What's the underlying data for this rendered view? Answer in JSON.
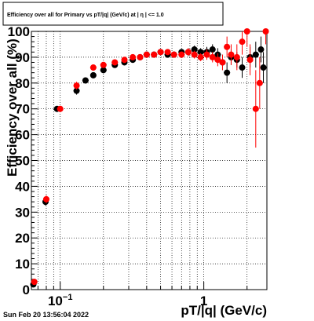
{
  "chart_data": {
    "type": "scatter",
    "title": "Efficiency over all for Primary vs pT/|q| (GeV/c) at | η | <= 1.0",
    "xlabel": "pT/|q| (GeV/c)",
    "ylabel": "Efficiency over all (%)",
    "x_scale": "log",
    "xlim": [
      0.063,
      2.75
    ],
    "ylim": [
      0,
      100
    ],
    "x_tick_labels": [
      {
        "value": 0.1,
        "base": "10",
        "exp": "−1"
      },
      {
        "value": 1,
        "base": "1",
        "exp": ""
      }
    ],
    "y_ticks": [
      0,
      10,
      20,
      30,
      40,
      50,
      60,
      70,
      80,
      90,
      100
    ],
    "grid": true,
    "footer": "Sun Feb 20 13:56:04 2022",
    "series": [
      {
        "color": "#000000",
        "points": [
          {
            "x": 0.065,
            "y": 2,
            "ey": 0.8
          },
          {
            "x": 0.079,
            "y": 34,
            "ey": 1.5
          },
          {
            "x": 0.095,
            "y": 70,
            "ey": 1
          },
          {
            "x": 0.13,
            "y": 77,
            "ey": 1.5
          },
          {
            "x": 0.15,
            "y": 81,
            "ey": 1.2
          },
          {
            "x": 0.17,
            "y": 83,
            "ey": 1.2
          },
          {
            "x": 0.2,
            "y": 85,
            "ey": 1
          },
          {
            "x": 0.24,
            "y": 87,
            "ey": 1
          },
          {
            "x": 0.28,
            "y": 88,
            "ey": 1
          },
          {
            "x": 0.32,
            "y": 89,
            "ey": 1
          },
          {
            "x": 0.36,
            "y": 90,
            "ey": 1
          },
          {
            "x": 0.4,
            "y": 91,
            "ey": 1
          },
          {
            "x": 0.45,
            "y": 91,
            "ey": 1
          },
          {
            "x": 0.5,
            "y": 92,
            "ey": 1
          },
          {
            "x": 0.56,
            "y": 91,
            "ey": 1
          },
          {
            "x": 0.62,
            "y": 91,
            "ey": 1.2
          },
          {
            "x": 0.7,
            "y": 92,
            "ey": 1.2
          },
          {
            "x": 0.78,
            "y": 92,
            "ey": 1.5
          },
          {
            "x": 0.86,
            "y": 93,
            "ey": 1.5
          },
          {
            "x": 0.95,
            "y": 92,
            "ey": 1.5
          },
          {
            "x": 1.05,
            "y": 92,
            "ey": 2
          },
          {
            "x": 1.15,
            "y": 93,
            "ey": 2
          },
          {
            "x": 1.25,
            "y": 91,
            "ey": 2.5
          },
          {
            "x": 1.35,
            "y": 88,
            "ey": 3
          },
          {
            "x": 1.45,
            "y": 84,
            "ey": 4
          },
          {
            "x": 1.55,
            "y": 90,
            "ey": 3
          },
          {
            "x": 1.7,
            "y": 89,
            "ey": 3
          },
          {
            "x": 1.85,
            "y": 86,
            "ey": 4
          },
          {
            "x": 2.1,
            "y": 90,
            "ey": 4
          },
          {
            "x": 2.3,
            "y": 91,
            "ey": 5
          },
          {
            "x": 2.5,
            "y": 93,
            "ey": 5
          },
          {
            "x": 2.6,
            "y": 86,
            "ey": 6
          }
        ]
      },
      {
        "color": "#ff0000",
        "points": [
          {
            "x": 0.066,
            "y": 3,
            "ey": 0.8
          },
          {
            "x": 0.08,
            "y": 35,
            "ey": 1.5
          },
          {
            "x": 0.1,
            "y": 70,
            "ey": 1
          },
          {
            "x": 0.13,
            "y": 79,
            "ey": 1.5
          },
          {
            "x": 0.17,
            "y": 86,
            "ey": 1.2
          },
          {
            "x": 0.2,
            "y": 87,
            "ey": 1
          },
          {
            "x": 0.24,
            "y": 88,
            "ey": 1
          },
          {
            "x": 0.28,
            "y": 89,
            "ey": 1
          },
          {
            "x": 0.32,
            "y": 90,
            "ey": 1
          },
          {
            "x": 0.36,
            "y": 90,
            "ey": 1
          },
          {
            "x": 0.4,
            "y": 91,
            "ey": 1
          },
          {
            "x": 0.45,
            "y": 91,
            "ey": 1
          },
          {
            "x": 0.5,
            "y": 92,
            "ey": 1
          },
          {
            "x": 0.56,
            "y": 92,
            "ey": 1
          },
          {
            "x": 0.62,
            "y": 91,
            "ey": 1.2
          },
          {
            "x": 0.7,
            "y": 91,
            "ey": 1.2
          },
          {
            "x": 0.78,
            "y": 92,
            "ey": 1.5
          },
          {
            "x": 0.86,
            "y": 91,
            "ey": 1.5
          },
          {
            "x": 0.95,
            "y": 90,
            "ey": 1.5
          },
          {
            "x": 1.05,
            "y": 91,
            "ey": 2
          },
          {
            "x": 1.15,
            "y": 90,
            "ey": 2
          },
          {
            "x": 1.25,
            "y": 89,
            "ey": 2.5
          },
          {
            "x": 1.35,
            "y": 88,
            "ey": 3
          },
          {
            "x": 1.45,
            "y": 94,
            "ey": 4
          },
          {
            "x": 1.55,
            "y": 91,
            "ey": 4
          },
          {
            "x": 1.7,
            "y": 90,
            "ey": 5
          },
          {
            "x": 1.85,
            "y": 96,
            "ey": 5
          },
          {
            "x": 2.0,
            "y": 100,
            "ey": 6
          },
          {
            "x": 2.1,
            "y": 89,
            "ey": 6
          },
          {
            "x": 2.3,
            "y": 70,
            "ey": 15
          },
          {
            "x": 2.45,
            "y": 80,
            "ey": 10
          },
          {
            "x": 2.7,
            "y": 100,
            "ey": 5
          }
        ]
      }
    ]
  }
}
